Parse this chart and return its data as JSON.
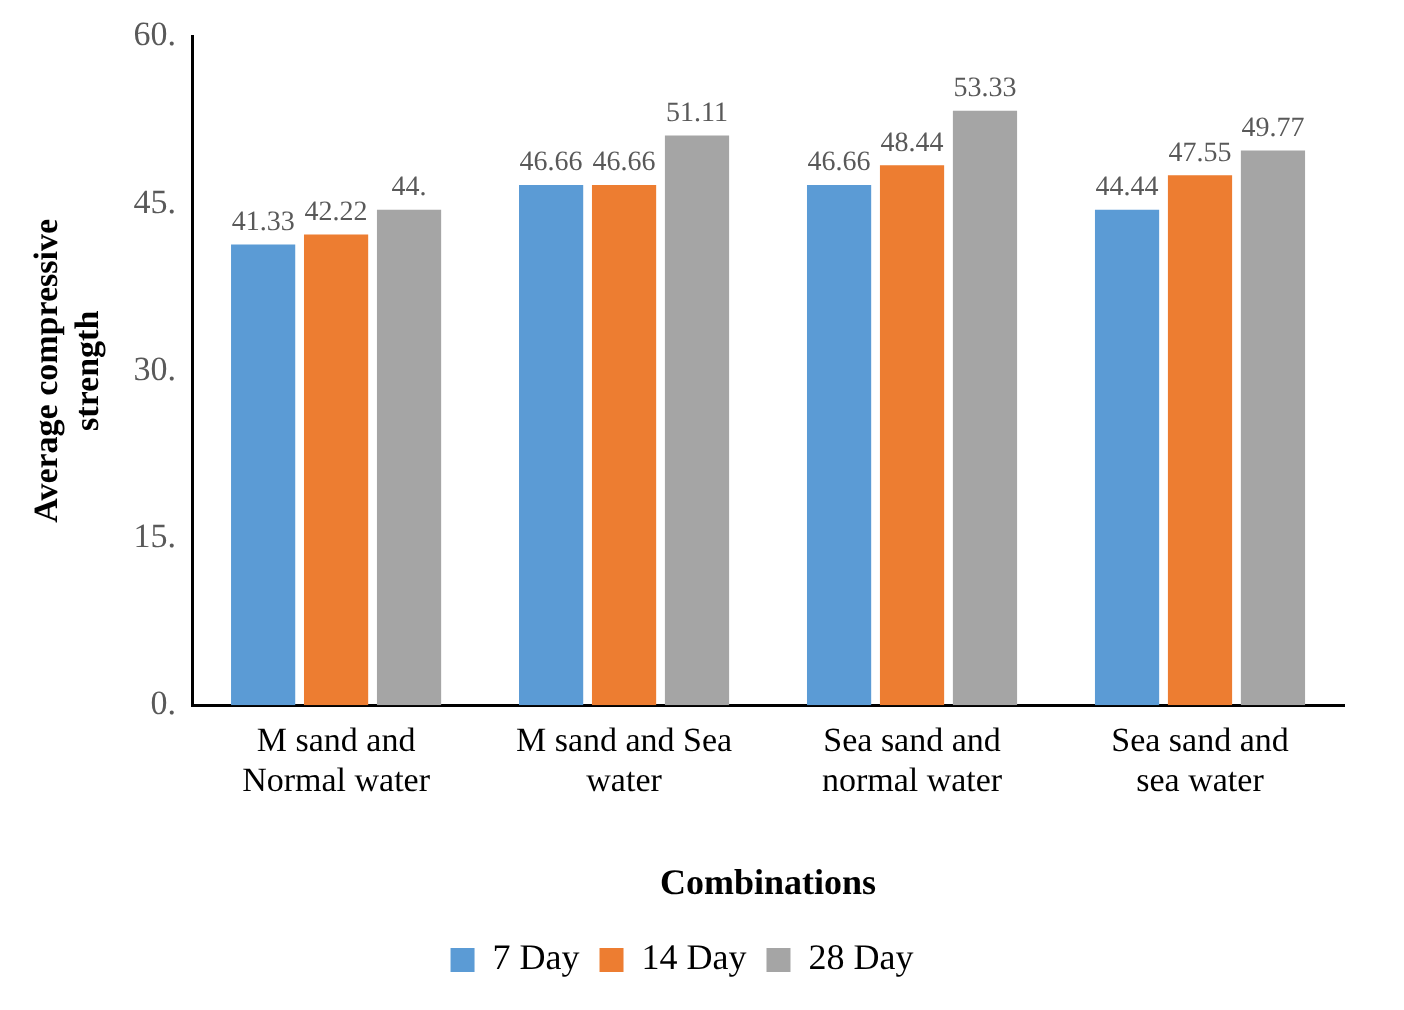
{
  "chart_data": {
    "type": "bar",
    "xlabel": "Combinations",
    "ylabel": "Average compressive strength",
    "categories": [
      "M sand and Normal water",
      "M sand and Sea water",
      "Sea sand and normal water",
      "Sea sand and sea water"
    ],
    "series": [
      {
        "name": "7 Day",
        "color": "#5b9bd5",
        "values": [
          41.33,
          46.66,
          46.66,
          44.44
        ],
        "value_labels": [
          "41.33",
          "46.66",
          "46.66",
          "44.44"
        ]
      },
      {
        "name": "14 Day",
        "color": "#ed7d31",
        "values": [
          42.22,
          46.66,
          48.44,
          47.55
        ],
        "value_labels": [
          "42.22",
          "46.66",
          "48.44",
          "47.55"
        ]
      },
      {
        "name": "28 Day",
        "color": "#a5a5a5",
        "values": [
          44.44,
          51.11,
          53.33,
          49.77
        ],
        "value_labels": [
          "44.",
          "51.11",
          "53.33",
          "49.77"
        ]
      }
    ],
    "ylim": [
      0,
      60
    ],
    "yticks": [
      {
        "value": 0,
        "label": "0."
      },
      {
        "value": 15,
        "label": "15."
      },
      {
        "value": 30,
        "label": "30."
      },
      {
        "value": 45,
        "label": "45."
      },
      {
        "value": 60,
        "label": "60."
      }
    ],
    "grid": false,
    "legend": "bottom"
  }
}
